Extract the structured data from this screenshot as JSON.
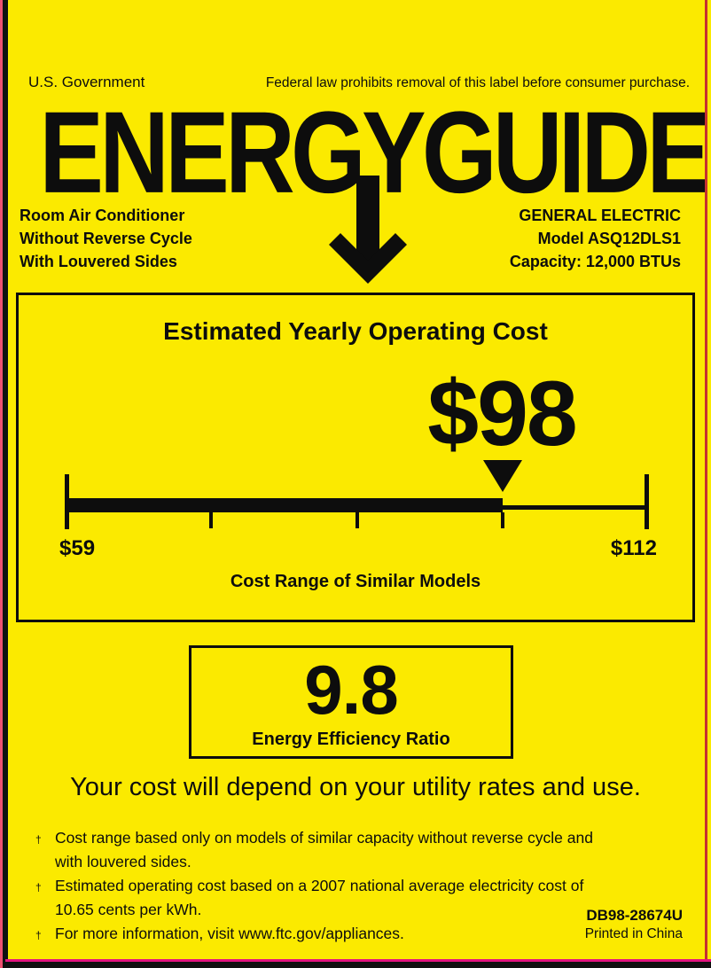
{
  "colors": {
    "background": "#FBEA00",
    "ink": "#0d0d0d",
    "edge_pink": "#EE5170",
    "edge_red": "#C53030",
    "edge_magenta": "#E2147F"
  },
  "header": {
    "government": "U.S. Government",
    "federal_notice": "Federal law prohibits removal of this label before consumer purchase."
  },
  "logo": {
    "text": "ENERGYGUIDE",
    "arrow_icon": "down-arrow"
  },
  "product": {
    "lines": [
      "Room Air Conditioner",
      "Without Reverse Cycle",
      "With Louvered Sides"
    ]
  },
  "manufacturer": {
    "lines": [
      "GENERAL ELECTRIC",
      "Model ASQ12DLS1",
      "Capacity: 12,000 BTUs"
    ]
  },
  "cost_section": {
    "title": "Estimated Yearly Operating Cost",
    "value_label": "$98",
    "value": 98,
    "scale": {
      "min": 59,
      "max": 112,
      "min_label": "$59",
      "max_label": "$112",
      "pointer_value": 98,
      "pointer_pct": 74.9,
      "minor_ticks_pct": [
        25,
        50,
        75
      ]
    },
    "caption": "Cost Range of Similar Models"
  },
  "eer_section": {
    "value": "9.8",
    "label": "Energy Efficiency Ratio"
  },
  "utility_note": "Your cost will depend on your utility rates and use.",
  "footnotes": {
    "marker": "†",
    "items": [
      {
        "lines": [
          "Cost range based only on models of similar capacity without reverse cycle and",
          "with louvered sides."
        ]
      },
      {
        "lines": [
          "Estimated operating cost based on a 2007 national average electricity cost of",
          "10.65 cents per kWh."
        ]
      },
      {
        "lines": [
          "For more information, visit www.ftc.gov/appliances."
        ]
      }
    ]
  },
  "footer": {
    "part_number": "DB98-28674U",
    "printed_in": "Printed in China"
  }
}
